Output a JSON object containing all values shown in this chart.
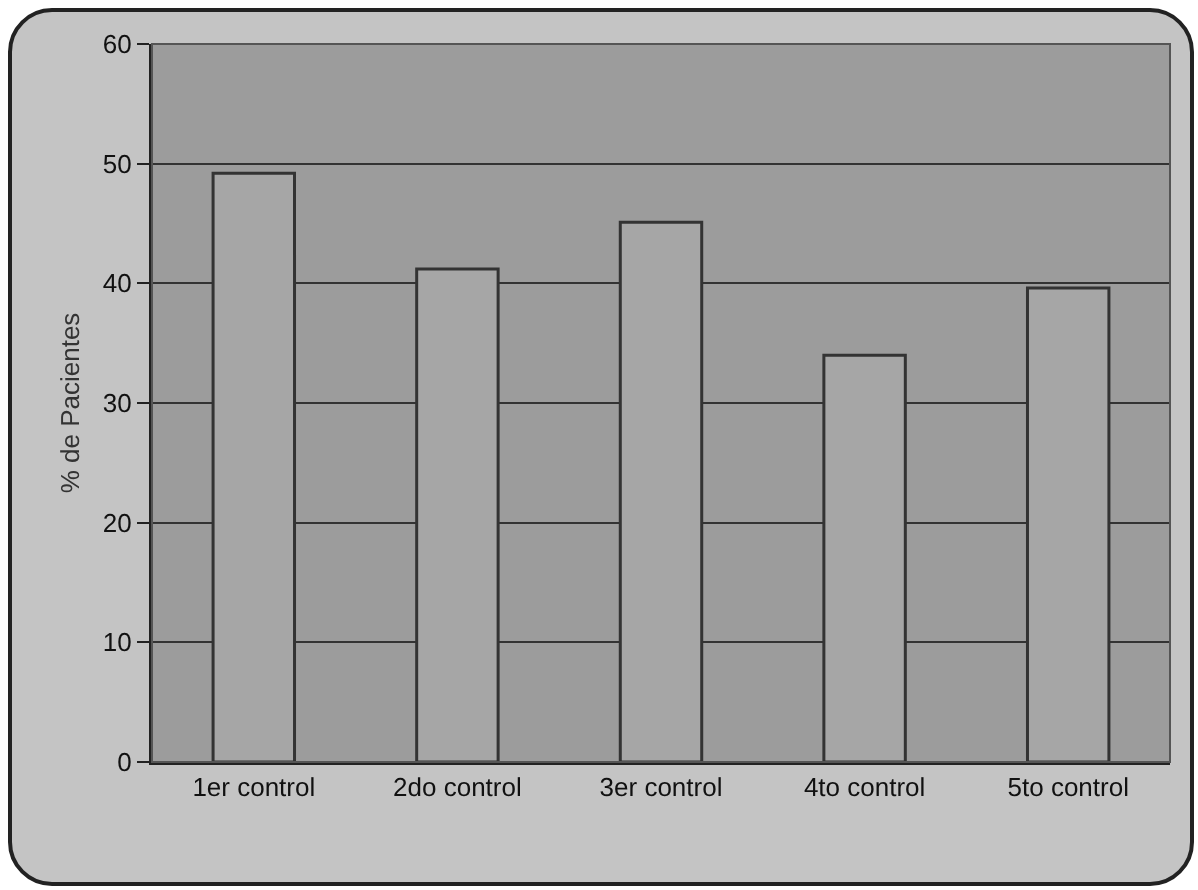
{
  "chart_data": {
    "type": "bar",
    "ylabel": "% de Pacientes",
    "categories": [
      "1er control",
      "2do control",
      "3er control",
      "4to control",
      "5to control"
    ],
    "values": [
      49.2,
      41.2,
      45.1,
      34.0,
      39.6
    ],
    "color": "#a6a6a6",
    "ylim": [
      0,
      60
    ],
    "yticks": [
      0,
      10,
      20,
      30,
      40,
      50,
      60
    ],
    "grid": "y"
  }
}
